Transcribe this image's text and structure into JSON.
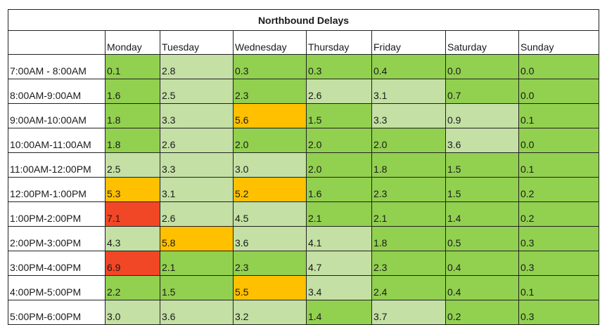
{
  "title": "Northbound Delays",
  "days": [
    "Monday",
    "Tuesday",
    "Wednesday",
    "Thursday",
    "Friday",
    "Saturday",
    "Sunday"
  ],
  "rows": [
    {
      "label": "7:00AM - 8:00AM",
      "values": [
        "0.1",
        "2.8",
        "0.3",
        "0.3",
        "0.4",
        "0.0",
        "0.0"
      ]
    },
    {
      "label": "8:00AM-9:00AM",
      "values": [
        "1.6",
        "2.5",
        "2.3",
        "2.6",
        "3.1",
        "0.7",
        "0.0"
      ]
    },
    {
      "label": "9:00AM-10:00AM",
      "values": [
        "1.8",
        "3.3",
        "5.6",
        "1.5",
        "3.3",
        "0.9",
        "0.1"
      ]
    },
    {
      "label": "10:00AM-11:00AM",
      "values": [
        "1.8",
        "2.6",
        "2.0",
        "2.0",
        "2.0",
        "3.6",
        "0.0"
      ]
    },
    {
      "label": "11:00AM-12:00PM",
      "values": [
        "2.5",
        "3.3",
        "3.0",
        "2.0",
        "1.8",
        "1.5",
        "0.1"
      ]
    },
    {
      "label": "12:00PM-1:00PM",
      "values": [
        "5.3",
        "3.1",
        "5.2",
        "1.6",
        "2.3",
        "1.5",
        "0.2"
      ]
    },
    {
      "label": "1:00PM-2:00PM",
      "values": [
        "7.1",
        "2.6",
        "4.5",
        "2.1",
        "2.1",
        "1.4",
        "0.2"
      ]
    },
    {
      "label": "2:00PM-3:00PM",
      "values": [
        "4.3",
        "5.8",
        "3.6",
        "4.1",
        "1.8",
        "0.5",
        "0.3"
      ]
    },
    {
      "label": "3:00PM-4:00PM",
      "values": [
        "6.9",
        "2.1",
        "2.3",
        "4.7",
        "2.3",
        "0.4",
        "0.3"
      ]
    },
    {
      "label": "4:00PM-5:00PM",
      "values": [
        "2.2",
        "1.5",
        "5.5",
        "3.4",
        "2.4",
        "0.4",
        "0.1"
      ]
    },
    {
      "label": "5:00PM-6:00PM",
      "values": [
        "3.0",
        "3.6",
        "3.2",
        "1.4",
        "3.7",
        "0.2",
        "0.3"
      ]
    }
  ],
  "shading": [
    [
      "green",
      "light",
      "green",
      "green",
      "green",
      "green",
      "green"
    ],
    [
      "green",
      "light",
      "green",
      "light",
      "light",
      "green",
      "green"
    ],
    [
      "green",
      "light",
      "orange",
      "green",
      "light",
      "light",
      "green"
    ],
    [
      "green",
      "light",
      "green",
      "green",
      "green",
      "light",
      "green"
    ],
    [
      "light",
      "light",
      "light",
      "green",
      "green",
      "green",
      "green"
    ],
    [
      "orange",
      "light",
      "orange",
      "green",
      "green",
      "green",
      "green"
    ],
    [
      "red",
      "light",
      "light",
      "green",
      "green",
      "green",
      "green"
    ],
    [
      "light",
      "orange",
      "light",
      "light",
      "green",
      "green",
      "green"
    ],
    [
      "red",
      "green",
      "green",
      "light",
      "green",
      "green",
      "green"
    ],
    [
      "green",
      "green",
      "orange",
      "light",
      "green",
      "green",
      "green"
    ],
    [
      "light",
      "light",
      "light",
      "green",
      "light",
      "green",
      "green"
    ]
  ],
  "palette": {
    "green": "#92d050",
    "light": "#c4e0a4",
    "orange": "#ffc000",
    "red": "#f24726"
  }
}
